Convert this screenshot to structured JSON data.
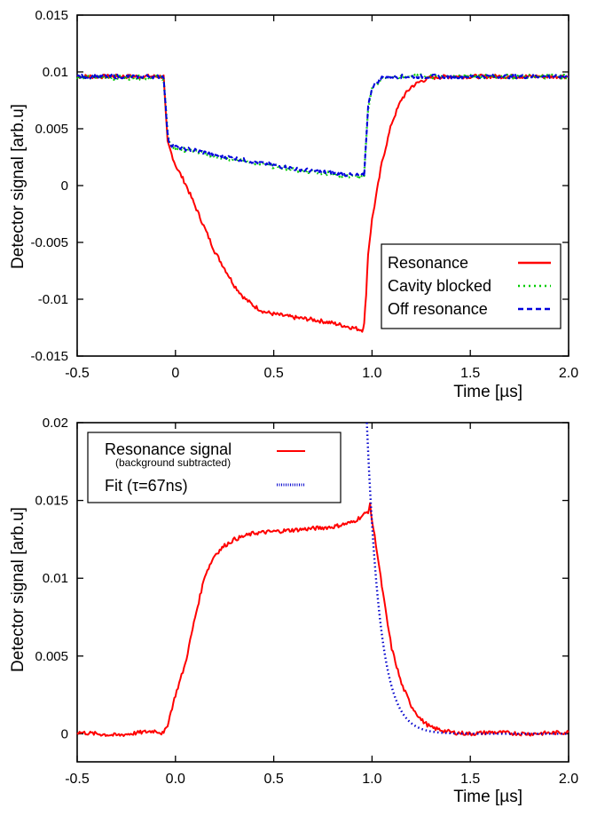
{
  "chart_data": [
    {
      "type": "line",
      "xlabel": "Time [µs]",
      "ylabel": "Detector signal [arb.u]",
      "xlim": [
        -0.5,
        2.0
      ],
      "ylim": [
        -0.015,
        0.015
      ],
      "xticks": [
        "-0.5",
        "0",
        "0.5",
        "1.0",
        "1.5",
        "2.0"
      ],
      "yticks": [
        "0.015",
        "0.01",
        "0.005",
        "0",
        "-0.005",
        "-0.01",
        "-0.015"
      ],
      "legend_position": "bottom-right",
      "series": [
        {
          "name": "Resonance",
          "color": "#ff0000",
          "style": "solid",
          "x": [
            -0.5,
            -0.2,
            -0.06,
            -0.05,
            -0.04,
            -0.02,
            0.0,
            0.05,
            0.1,
            0.15,
            0.2,
            0.25,
            0.3,
            0.35,
            0.4,
            0.45,
            0.5,
            0.6,
            0.7,
            0.8,
            0.9,
            0.95,
            0.96,
            0.97,
            0.98,
            1.0,
            1.05,
            1.1,
            1.15,
            1.2,
            1.25,
            1.3,
            1.4,
            1.5,
            2.0
          ],
          "y": [
            0.0096,
            0.0096,
            0.0096,
            0.0065,
            0.0038,
            0.0028,
            0.0018,
            0.0002,
            -0.0018,
            -0.0038,
            -0.0058,
            -0.0073,
            -0.0088,
            -0.0099,
            -0.0106,
            -0.0111,
            -0.0113,
            -0.0116,
            -0.0118,
            -0.0121,
            -0.0125,
            -0.0127,
            -0.0122,
            -0.0095,
            -0.006,
            -0.003,
            0.002,
            0.0055,
            0.0076,
            0.0087,
            0.0092,
            0.0095,
            0.0096,
            0.0096,
            0.0096
          ]
        },
        {
          "name": "Cavity blocked",
          "color": "#00cc00",
          "style": "dotted",
          "x": [
            -0.5,
            -0.06,
            -0.05,
            -0.04,
            -0.03,
            0.0,
            0.1,
            0.2,
            0.3,
            0.4,
            0.5,
            0.6,
            0.7,
            0.8,
            0.9,
            0.96,
            0.97,
            0.98,
            1.0,
            1.05,
            1.1,
            1.2,
            2.0
          ],
          "y": [
            0.0095,
            0.0095,
            0.007,
            0.0045,
            0.0036,
            0.0033,
            0.003,
            0.0026,
            0.0023,
            0.002,
            0.0017,
            0.0014,
            0.0012,
            0.001,
            0.0008,
            0.0008,
            0.004,
            0.0068,
            0.0086,
            0.0094,
            0.0095,
            0.0096,
            0.0096
          ]
        },
        {
          "name": "Off resonance",
          "color": "#0000dd",
          "style": "dashed",
          "x": [
            -0.5,
            -0.06,
            -0.05,
            -0.04,
            -0.03,
            0.0,
            0.1,
            0.2,
            0.3,
            0.4,
            0.5,
            0.6,
            0.7,
            0.8,
            0.9,
            0.96,
            0.97,
            0.98,
            1.0,
            1.05,
            1.1,
            1.2,
            2.0
          ],
          "y": [
            0.0096,
            0.0096,
            0.007,
            0.0045,
            0.0037,
            0.0034,
            0.0031,
            0.0027,
            0.0024,
            0.0021,
            0.0018,
            0.0015,
            0.0013,
            0.0011,
            0.0009,
            0.0009,
            0.004,
            0.0069,
            0.0087,
            0.0095,
            0.0096,
            0.0096,
            0.0096
          ]
        }
      ]
    },
    {
      "type": "line",
      "xlabel": "Time [µs]",
      "ylabel": "Detector signal [arb.u]",
      "xlim": [
        -0.5,
        2.0
      ],
      "ylim": [
        -0.0018,
        0.02
      ],
      "xticks": [
        "-0.5",
        "0.0",
        "0.5",
        "1.0",
        "1.5",
        "2.0"
      ],
      "yticks": [
        "0.02",
        "0.015",
        "0.01",
        "0.005",
        "0"
      ],
      "legend_position": "top-left",
      "series": [
        {
          "name": "Resonance signal",
          "subtitle": "(background subtracted)",
          "color": "#ff0000",
          "style": "solid",
          "x": [
            -0.5,
            -0.3,
            -0.1,
            -0.06,
            -0.04,
            0.0,
            0.05,
            0.1,
            0.15,
            0.2,
            0.25,
            0.3,
            0.35,
            0.4,
            0.5,
            0.6,
            0.7,
            0.8,
            0.9,
            0.95,
            0.98,
            0.99,
            1.0,
            1.02,
            1.05,
            1.08,
            1.1,
            1.15,
            1.2,
            1.25,
            1.3,
            1.4,
            1.5,
            1.6,
            1.8,
            2.0
          ],
          "y": [
            0.0001,
            -0.0001,
            0.0002,
            0.0,
            0.0006,
            0.0025,
            0.0045,
            0.0075,
            0.0102,
            0.0115,
            0.0121,
            0.0125,
            0.0127,
            0.0129,
            0.013,
            0.0131,
            0.0132,
            0.0133,
            0.0136,
            0.014,
            0.0143,
            0.0147,
            0.0137,
            0.0122,
            0.0095,
            0.007,
            0.0055,
            0.0032,
            0.0018,
            0.0009,
            0.0004,
            0.0001,
            0.0,
            0.0001,
            0.0,
            0.0001
          ]
        },
        {
          "name": "Fit (τ=67ns)",
          "color": "#0000cc",
          "style": "dotted",
          "tau_us": 0.067,
          "t0_us": 1.0,
          "amplitude": 0.0135
        }
      ]
    }
  ]
}
